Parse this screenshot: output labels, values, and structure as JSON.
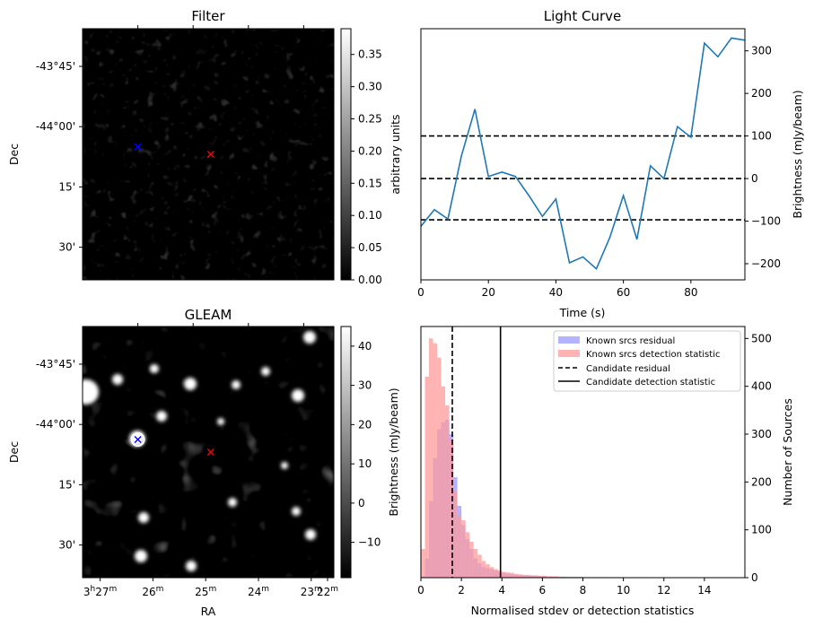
{
  "colors": {
    "line": "#1f77b4",
    "known_residual_hist": "#9999ff",
    "known_detection_hist": "#ff9999",
    "candidate_marker": "#ff0000",
    "blue_marker": "#0000ff"
  },
  "chart_data": [
    {
      "type": "heatmap",
      "title": "Filter",
      "xlabel": "",
      "ylabel": "Dec",
      "yticks": [
        "-43°45'",
        "-44°00'",
        "15'",
        "30'"
      ],
      "colorbar": {
        "label": "arbitrary units",
        "ticks": [
          "0.00",
          "0.05",
          "0.10",
          "0.15",
          "0.20",
          "0.25",
          "0.30",
          "0.35"
        ],
        "range": [
          0,
          0.39
        ]
      },
      "markers": [
        {
          "symbol": "x",
          "color": "blue",
          "ra_frac": 0.22,
          "dec_frac": 0.47
        },
        {
          "symbol": "x",
          "color": "red",
          "ra_frac": 0.51,
          "dec_frac": 0.5
        }
      ]
    },
    {
      "type": "line",
      "title": "Light Curve",
      "xlabel": "Time (s)",
      "ylabel": "Brightness (mJy/beam)",
      "xlim": [
        0,
        96
      ],
      "ylim": [
        -238,
        352
      ],
      "xticks": [
        "0",
        "20",
        "40",
        "60",
        "80"
      ],
      "yticks": [
        "−200",
        "−100",
        "0",
        "100",
        "200",
        "300"
      ],
      "x": [
        0,
        4,
        8,
        12,
        16,
        20,
        24,
        28,
        32,
        36,
        40,
        44,
        48,
        52,
        56,
        60,
        64,
        68,
        72,
        76,
        80,
        84,
        88,
        92,
        96
      ],
      "y": [
        -112,
        -73,
        -95,
        53,
        163,
        5,
        15,
        5,
        -40,
        -89,
        -48,
        -198,
        -184,
        -212,
        -138,
        -40,
        -143,
        30,
        0,
        122,
        97,
        318,
        286,
        330,
        325
      ],
      "hlines": [
        {
          "y": 100,
          "style": "dashed"
        },
        {
          "y": 0,
          "style": "dashed"
        },
        {
          "y": -97,
          "style": "dashed"
        }
      ]
    },
    {
      "type": "heatmap",
      "title": "GLEAM",
      "xlabel": "RA",
      "ylabel": "Dec",
      "xticks": [
        {
          "h": "3",
          "hsup": "h",
          "m": "27",
          "msup": "m"
        },
        {
          "m": "26",
          "msup": "m"
        },
        {
          "m": "25",
          "msup": "m"
        },
        {
          "m": "24",
          "msup": "m"
        },
        {
          "m": "23",
          "msup": "m"
        },
        {
          "m": "22",
          "msup": "m"
        }
      ],
      "yticks": [
        "-43°45'",
        "-44°00'",
        "15'",
        "30'"
      ],
      "colorbar": {
        "label": "",
        "ticks": [
          "−10",
          "0",
          "10",
          "20",
          "30",
          "40"
        ],
        "range": [
          -19,
          45
        ]
      },
      "markers": [
        {
          "symbol": "x",
          "color": "blue",
          "ra_frac": 0.22,
          "dec_frac": 0.45
        },
        {
          "symbol": "x",
          "color": "red",
          "ra_frac": 0.51,
          "dec_frac": 0.5
        }
      ]
    },
    {
      "type": "histogram",
      "title": "",
      "xlabel": "Normalised stdev or detection statistics",
      "ylabel_left": "Brightness (mJy/beam)",
      "ylabel_right": "Number of Sources",
      "xlim": [
        0,
        16
      ],
      "ylim": [
        0,
        525
      ],
      "xticks": [
        "0",
        "2",
        "4",
        "6",
        "8",
        "10",
        "12",
        "14"
      ],
      "yticks": [
        "0",
        "100",
        "200",
        "300",
        "400",
        "500"
      ],
      "bin_width": 0.2,
      "series": [
        {
          "name": "Known srcs residual",
          "values": [
            3,
            40,
            160,
            250,
            310,
            325,
            330,
            300,
            210,
            150,
            110,
            80,
            60,
            40,
            30,
            22,
            20,
            18,
            15,
            12,
            10,
            8,
            7,
            6,
            5,
            5,
            4,
            4,
            3,
            3,
            3,
            2,
            2,
            2,
            2,
            2,
            1,
            1,
            1,
            1,
            1,
            1,
            1,
            1,
            1,
            1,
            1,
            0,
            1,
            0
          ]
        },
        {
          "name": "Known srcs detection statistic",
          "values": [
            60,
            420,
            500,
            490,
            460,
            400,
            360,
            290,
            180,
            130,
            120,
            95,
            75,
            60,
            48,
            35,
            28,
            22,
            18,
            15,
            12,
            11,
            10,
            8,
            7,
            6,
            6,
            5,
            5,
            4,
            4,
            3,
            3,
            3,
            2,
            2,
            2,
            2,
            2,
            2,
            1,
            1,
            1,
            1,
            1,
            1,
            1,
            1,
            1,
            1
          ]
        }
      ],
      "vlines": [
        {
          "name": "Candidate residual",
          "x": 1.55,
          "style": "dashed"
        },
        {
          "name": "Candidate detection statistic",
          "x": 3.93,
          "style": "solid"
        }
      ],
      "legend_position": "top-right"
    }
  ]
}
